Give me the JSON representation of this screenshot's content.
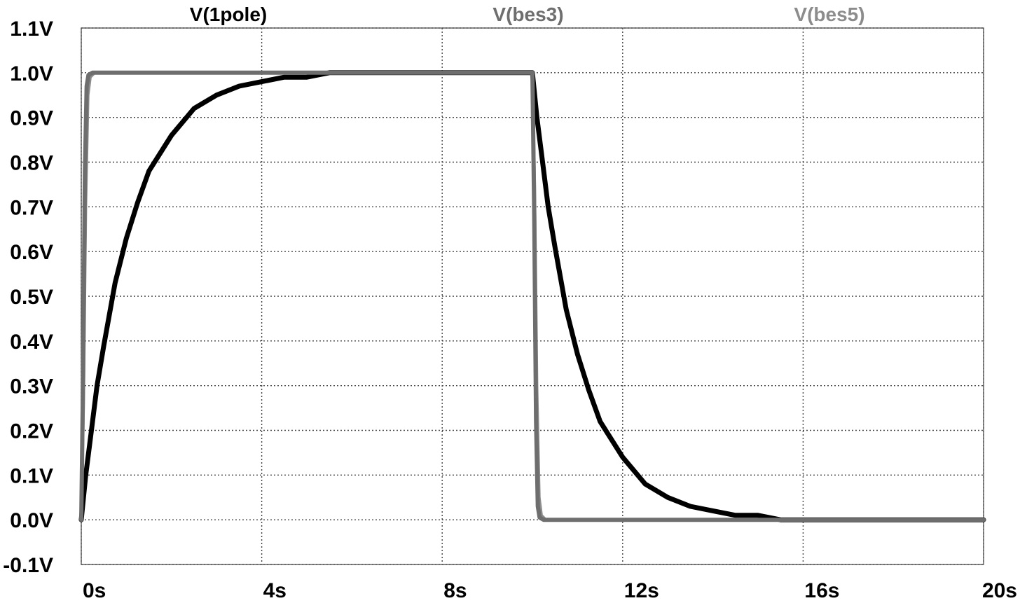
{
  "chart_data": {
    "type": "line",
    "title": "",
    "xlabel": "",
    "ylabel": "",
    "xlim": [
      0,
      20
    ],
    "ylim": [
      -0.1,
      1.1
    ],
    "x_unit": "s",
    "y_unit": "V",
    "grid": true,
    "legend_position": "top",
    "x_ticks": [
      0,
      4,
      8,
      12,
      16,
      20
    ],
    "x_tick_labels": [
      "0s",
      "4s",
      "8s",
      "12s",
      "16s",
      "20s"
    ],
    "y_ticks": [
      1.1,
      1.0,
      0.9,
      0.8,
      0.7,
      0.6,
      0.5,
      0.4,
      0.3,
      0.2,
      0.1,
      0.0,
      -0.1
    ],
    "y_tick_labels": [
      "1.1V",
      "1.0V",
      "0.9V",
      "0.8V",
      "0.7V",
      "0.6V",
      "0.5V",
      "0.4V",
      "0.3V",
      "0.2V",
      "0.1V",
      "0.0V",
      "-0.1V"
    ],
    "series": [
      {
        "name": "V(1pole)",
        "color": "#000000",
        "x": [
          0,
          0.1,
          0.2,
          0.35,
          0.5,
          0.75,
          1.0,
          1.25,
          1.5,
          2.0,
          2.5,
          3.0,
          3.5,
          4.0,
          4.5,
          5.0,
          5.5,
          6.0,
          7.0,
          8.0,
          9.0,
          10.0,
          10.1,
          10.2,
          10.35,
          10.5,
          10.75,
          11.0,
          11.25,
          11.5,
          12.0,
          12.5,
          13.0,
          13.5,
          14.0,
          14.5,
          15.0,
          15.5,
          16.0,
          17.0,
          18.0,
          19.0,
          20.0
        ],
        "y": [
          0.0,
          0.1,
          0.18,
          0.3,
          0.39,
          0.53,
          0.63,
          0.71,
          0.78,
          0.86,
          0.92,
          0.95,
          0.97,
          0.98,
          0.99,
          0.99,
          1.0,
          1.0,
          1.0,
          1.0,
          1.0,
          1.0,
          0.9,
          0.82,
          0.7,
          0.61,
          0.47,
          0.37,
          0.29,
          0.22,
          0.14,
          0.08,
          0.05,
          0.03,
          0.02,
          0.01,
          0.01,
          0.0,
          0.0,
          0.0,
          0.0,
          0.0,
          0.0
        ]
      },
      {
        "name": "V(bes3)",
        "color": "#6e6e6e",
        "x": [
          0,
          0.04,
          0.08,
          0.12,
          0.16,
          0.25,
          5.0,
          10.0,
          10.04,
          10.08,
          10.12,
          10.16,
          10.25,
          15.0,
          20.0
        ],
        "y": [
          0.0,
          0.32,
          0.78,
          0.97,
          0.995,
          1.0,
          1.0,
          1.0,
          0.68,
          0.22,
          0.03,
          0.005,
          0.0,
          0.0,
          0.0
        ]
      },
      {
        "name": "V(bes5)",
        "color": "#8c8c8c",
        "x": [
          0,
          0.05,
          0.1,
          0.15,
          0.2,
          0.3,
          5.0,
          10.0,
          10.05,
          10.1,
          10.15,
          10.2,
          10.3,
          15.0,
          20.0
        ],
        "y": [
          0.0,
          0.25,
          0.7,
          0.95,
          0.99,
          1.0,
          1.0,
          1.0,
          0.75,
          0.3,
          0.05,
          0.01,
          0.0,
          0.0,
          0.0
        ]
      }
    ]
  }
}
